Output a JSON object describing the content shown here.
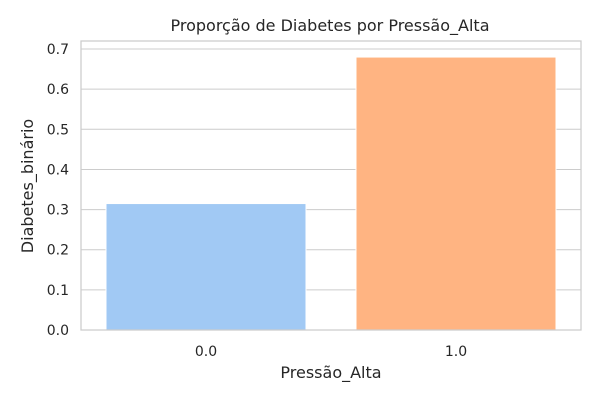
{
  "chart_data": {
    "type": "bar",
    "title": "Proporção de Diabetes por Pressão_Alta",
    "xlabel": "Pressão_Alta",
    "ylabel": "Diabetes_binário",
    "categories": [
      "0.0",
      "1.0"
    ],
    "values": [
      0.315,
      0.68
    ],
    "ylim": [
      0,
      0.72
    ],
    "yticks": [
      "0.0",
      "0.1",
      "0.2",
      "0.3",
      "0.4",
      "0.5",
      "0.6",
      "0.7"
    ],
    "bar_colors": [
      "#a1c9f4",
      "#ffb482"
    ],
    "grid": "horizontal",
    "legend": "none"
  }
}
